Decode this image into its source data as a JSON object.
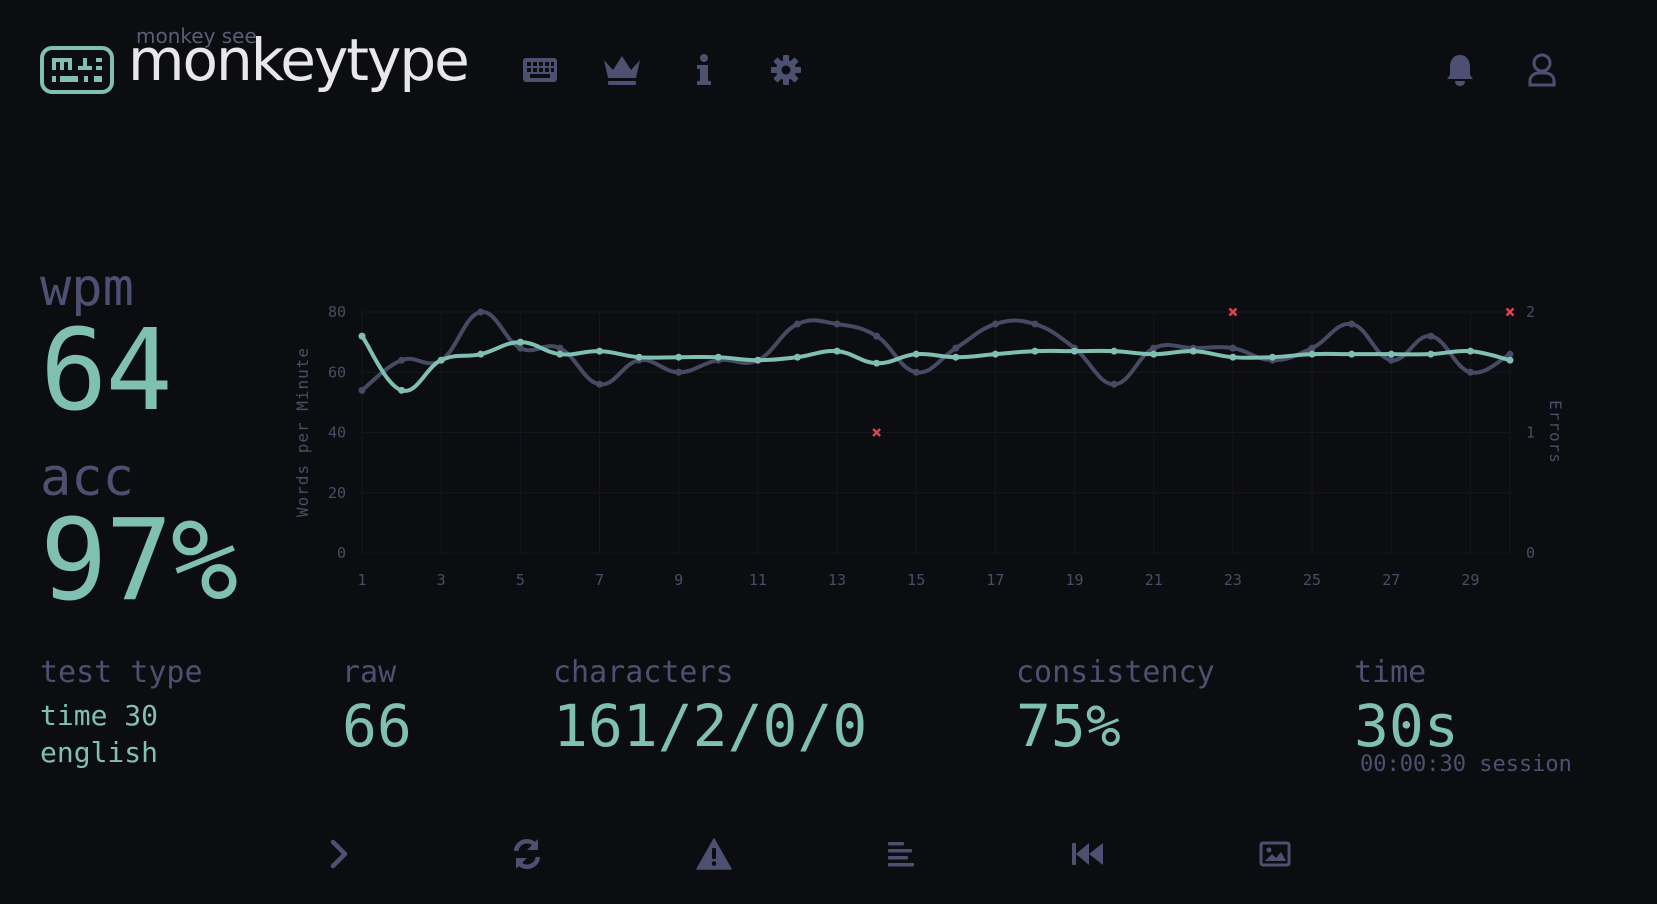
{
  "header": {
    "subtitle": "monkey see",
    "title": "monkeytype",
    "nav": [
      {
        "icon": "keyboard-icon"
      },
      {
        "icon": "crown-icon"
      },
      {
        "icon": "info-icon"
      },
      {
        "icon": "gear-icon"
      }
    ],
    "right": [
      {
        "icon": "bell-icon"
      },
      {
        "icon": "user-icon"
      }
    ]
  },
  "result": {
    "wpm_label": "wpm",
    "wpm_value": "64",
    "acc_label": "acc",
    "acc_value": "97%"
  },
  "stats": {
    "test_type_label": "test type",
    "test_type_line1": "time 30",
    "test_type_line2": "english",
    "raw_label": "raw",
    "raw_value": "66",
    "characters_label": "characters",
    "characters_value": "161/2/0/0",
    "consistency_label": "consistency",
    "consistency_value": "75%",
    "time_label": "time",
    "time_value": "30s",
    "session_text": "00:00:30 session"
  },
  "buttons": [
    {
      "icon": "next-test-icon"
    },
    {
      "icon": "restart-icon"
    },
    {
      "icon": "warning-icon"
    },
    {
      "icon": "word-history-icon"
    },
    {
      "icon": "replay-icon"
    },
    {
      "icon": "screenshot-icon"
    }
  ],
  "colors": {
    "background": "#0c0d11",
    "accent": "#7fc0b2",
    "sub": "#4d5070",
    "raw_line": "#474a63",
    "error": "#e0404f",
    "text": "#e8e8ec"
  },
  "chart_data": {
    "type": "line",
    "ylabel": "Words per Minute",
    "y2label": "Errors",
    "x": [
      1,
      2,
      3,
      4,
      5,
      6,
      7,
      8,
      9,
      10,
      11,
      12,
      13,
      14,
      15,
      16,
      17,
      18,
      19,
      20,
      21,
      22,
      23,
      24,
      25,
      26,
      27,
      28,
      29,
      30
    ],
    "xticks": [
      1,
      3,
      5,
      7,
      9,
      11,
      13,
      15,
      17,
      19,
      21,
      23,
      25,
      27,
      29
    ],
    "ylim": [
      0,
      80
    ],
    "yticks": [
      0,
      20,
      40,
      60,
      80
    ],
    "y2lim": [
      0,
      2
    ],
    "y2ticks": [
      0,
      1,
      2
    ],
    "grid": true,
    "series": [
      {
        "key": "raw",
        "values": [
          54,
          64,
          64,
          80,
          68,
          68,
          56,
          64,
          60,
          64,
          64,
          76,
          76,
          72,
          60,
          68,
          76,
          76,
          68,
          56,
          68,
          68,
          68,
          64,
          68,
          76,
          64,
          72,
          60,
          66
        ]
      },
      {
        "key": "wpm",
        "values": [
          72,
          54,
          64,
          66,
          70,
          66,
          67,
          65,
          65,
          65,
          64,
          65,
          67,
          63,
          66,
          65,
          66,
          67,
          67,
          67,
          66,
          67,
          65,
          65,
          66,
          66,
          66,
          66,
          67,
          64
        ]
      },
      {
        "key": "errors",
        "points": [
          [
            14,
            1
          ],
          [
            23,
            2
          ],
          [
            30,
            2
          ]
        ]
      }
    ]
  }
}
